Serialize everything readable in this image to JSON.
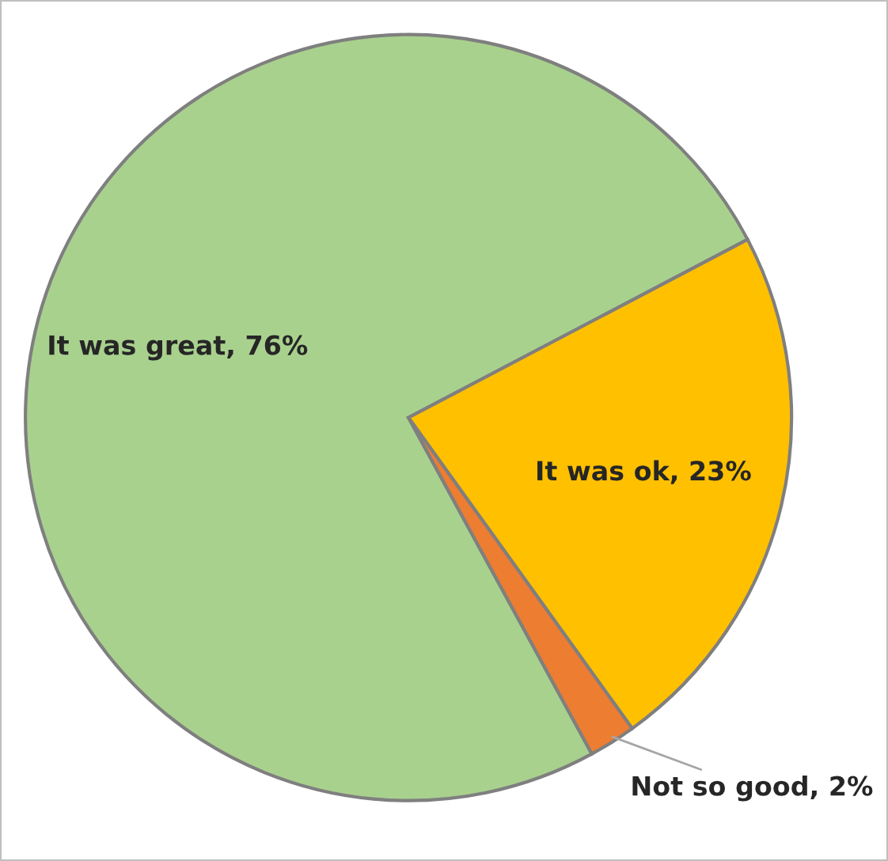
{
  "chart_data": {
    "type": "pie",
    "categories": [
      "It was great",
      "It was ok",
      "Not so good"
    ],
    "values": [
      76,
      23,
      2
    ],
    "value_labels": [
      "76%",
      "23%",
      "2%"
    ],
    "colors": [
      "#a9d18e",
      "#ffc000",
      "#ed7d31"
    ],
    "legend": false
  }
}
